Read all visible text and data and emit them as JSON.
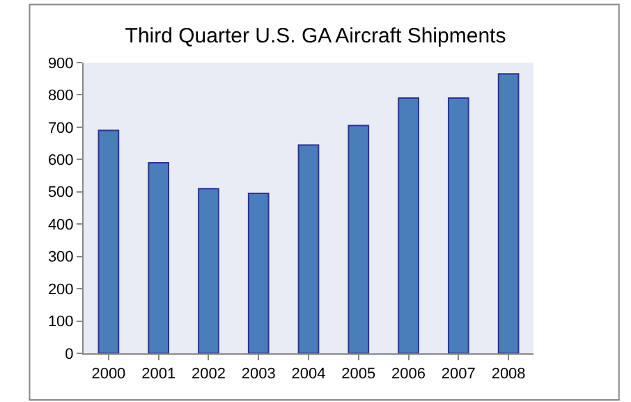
{
  "chart_data": {
    "type": "bar",
    "title": "Third Quarter U.S. GA Aircraft Shipments",
    "categories": [
      "2000",
      "2001",
      "2002",
      "2003",
      "2004",
      "2005",
      "2006",
      "2007",
      "2008"
    ],
    "values": [
      690,
      590,
      510,
      495,
      645,
      705,
      790,
      790,
      865
    ],
    "color": "#4a7ebb",
    "ylim": [
      0,
      900
    ],
    "yticks": [
      0,
      100,
      200,
      300,
      400,
      500,
      600,
      700,
      800,
      900
    ],
    "grid": false,
    "legend": false
  }
}
